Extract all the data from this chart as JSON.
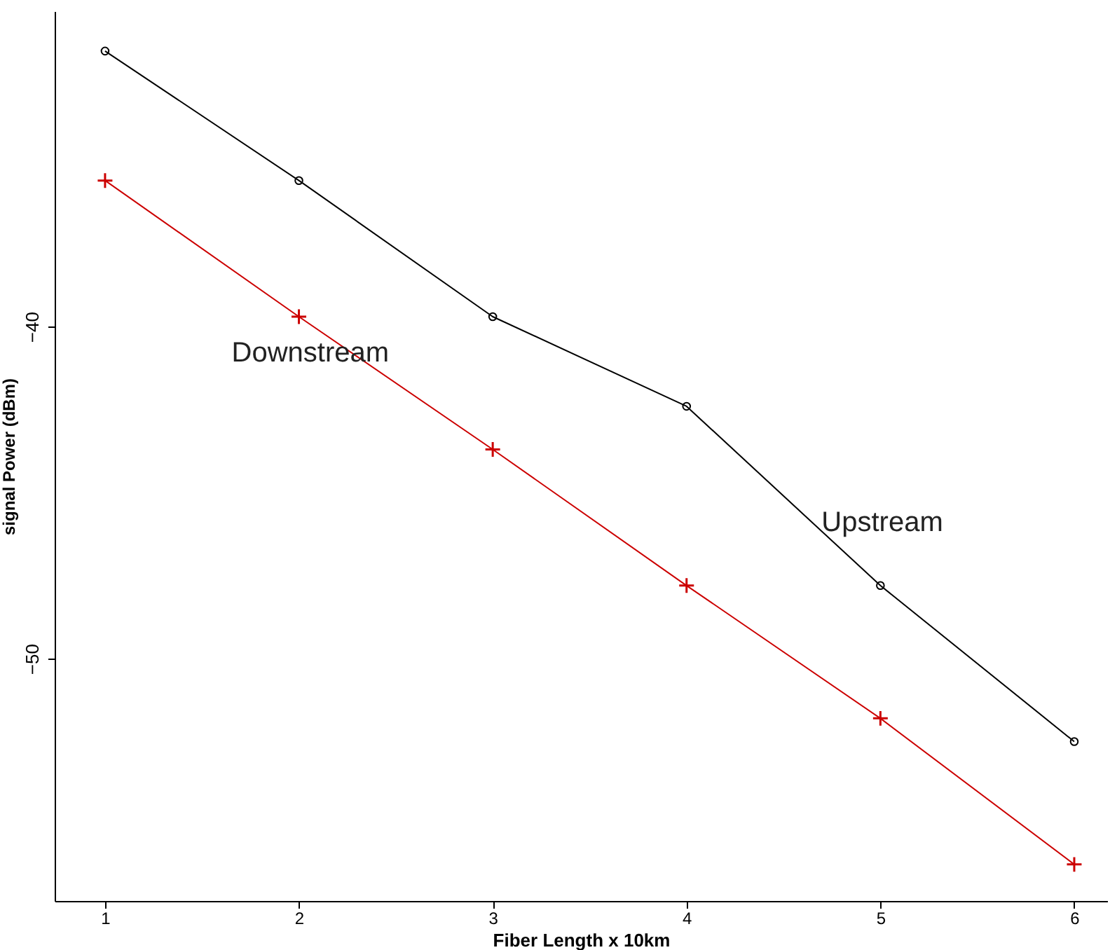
{
  "chart_data": {
    "type": "line",
    "xlabel": "Fiber Length x 10km",
    "ylabel": "signal Power (dBm)",
    "x": [
      1,
      2,
      3,
      4,
      5,
      6
    ],
    "series": [
      {
        "name": "Upstream",
        "color": "#000000",
        "marker": "circle",
        "values": [
          -31.7,
          -35.6,
          -39.7,
          -42.4,
          -47.8,
          -52.5
        ]
      },
      {
        "name": "Downstream",
        "color": "#cc0000",
        "marker": "cross",
        "values": [
          -35.6,
          -39.7,
          -43.7,
          -47.8,
          -51.8,
          -56.2
        ]
      }
    ],
    "xlim": [
      0.74,
      6.17
    ],
    "ylim": [
      -57.3,
      -30.5
    ],
    "xticks": [
      1,
      2,
      3,
      4,
      5,
      6
    ],
    "yticks": [
      -40,
      -50
    ],
    "grid": false,
    "line_style": "solid"
  }
}
